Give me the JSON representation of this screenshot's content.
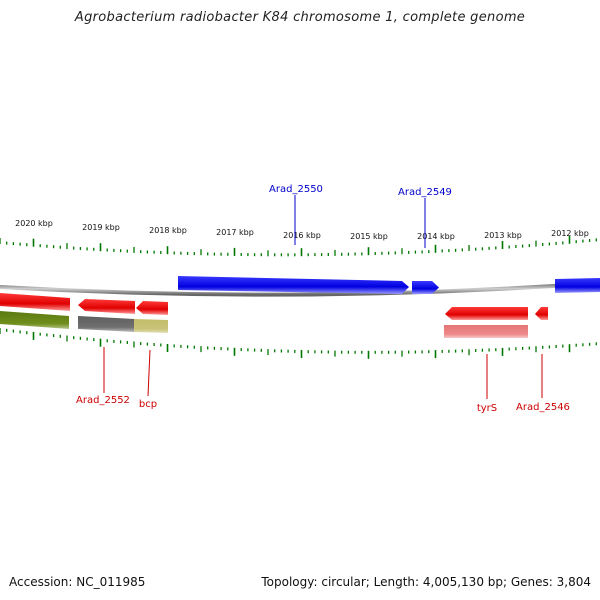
{
  "title": "Agrobacterium radiobacter K84 chromosome 1, complete genome",
  "footer": {
    "accession": "Accession: NC_011985",
    "topology": "Topology: circular; Length: 4,005,130 bp; Genes: 3,804"
  },
  "kbp_labels": [
    "2020 kbp",
    "2019 kbp",
    "2018 kbp",
    "2017 kbp",
    "2016 kbp",
    "2015 kbp",
    "2014 kbp",
    "2013 kbp",
    "2012 kbp"
  ],
  "gene_labels": {
    "arad_2550": "Arad_2550",
    "arad_2549": "Arad_2549",
    "arad_2552": "Arad_2552",
    "bcp": "bcp",
    "tyrs": "tyrS",
    "arad_2546": "Arad_2546"
  },
  "colors": {
    "forward_gene": "#0000ee",
    "reverse_gene": "#ee0000",
    "backbone": "#888888",
    "tick": "#007700",
    "label_blue": "#0000cc",
    "label_red": "#cc0000"
  }
}
